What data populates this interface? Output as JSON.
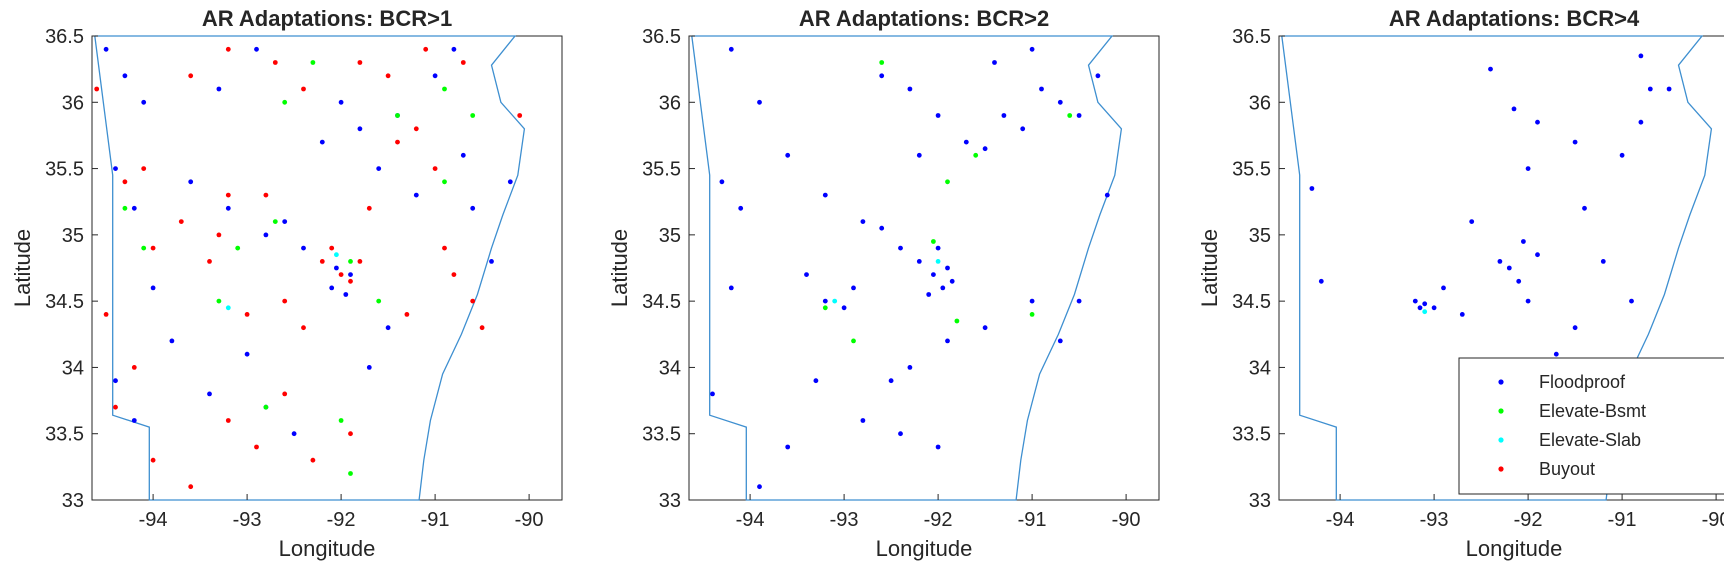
{
  "chart_data": [
    {
      "type": "scatter",
      "title": "AR Adaptations: BCR>1",
      "xlabel": "Longitude",
      "ylabel": "Latitude",
      "xlim": [
        -94.65,
        -89.65
      ],
      "ylim": [
        33,
        36.5
      ],
      "xticks": [
        "-94",
        "-93",
        "-92",
        "-91",
        "-90"
      ],
      "yticks": [
        "33",
        "33.5",
        "34",
        "34.5",
        "35",
        "35.5",
        "36",
        "36.5"
      ],
      "series": [
        {
          "name": "Floodproof",
          "color": "#0000ff",
          "points": [
            [
              -94.5,
              36.4
            ],
            [
              -94.3,
              36.2
            ],
            [
              -94.4,
              35.5
            ],
            [
              -94.2,
              35.2
            ],
            [
              -94.0,
              34.6
            ],
            [
              -93.6,
              35.4
            ],
            [
              -93.2,
              35.2
            ],
            [
              -92.8,
              35.0
            ],
            [
              -92.6,
              35.1
            ],
            [
              -92.4,
              34.9
            ],
            [
              -92.2,
              35.7
            ],
            [
              -92.0,
              36.0
            ],
            [
              -91.8,
              35.8
            ],
            [
              -91.6,
              35.5
            ],
            [
              -91.4,
              35.9
            ],
            [
              -91.2,
              35.3
            ],
            [
              -91.0,
              36.2
            ],
            [
              -90.8,
              36.4
            ],
            [
              -90.6,
              35.2
            ],
            [
              -90.4,
              34.8
            ],
            [
              -92.1,
              34.6
            ],
            [
              -91.95,
              34.55
            ],
            [
              -92.05,
              34.75
            ],
            [
              -91.9,
              34.7
            ],
            [
              -93.0,
              34.1
            ],
            [
              -93.4,
              33.8
            ],
            [
              -94.2,
              33.6
            ],
            [
              -94.4,
              33.9
            ],
            [
              -92.8,
              33.7
            ],
            [
              -91.5,
              34.3
            ],
            [
              -90.7,
              35.6
            ],
            [
              -90.2,
              35.4
            ],
            [
              -93.3,
              36.1
            ],
            [
              -92.9,
              36.4
            ],
            [
              -94.1,
              36.0
            ],
            [
              -93.8,
              34.2
            ],
            [
              -92.5,
              33.5
            ],
            [
              -91.7,
              34.0
            ]
          ]
        },
        {
          "name": "Elevate-Bsmt",
          "color": "#00ff00",
          "points": [
            [
              -94.3,
              35.2
            ],
            [
              -94.1,
              34.9
            ],
            [
              -93.1,
              34.9
            ],
            [
              -92.7,
              35.1
            ],
            [
              -91.9,
              34.8
            ],
            [
              -91.4,
              35.9
            ],
            [
              -90.9,
              36.1
            ],
            [
              -90.6,
              35.9
            ],
            [
              -92.3,
              36.3
            ],
            [
              -92.6,
              36.0
            ],
            [
              -93.3,
              34.5
            ],
            [
              -92.0,
              33.6
            ],
            [
              -92.8,
              33.7
            ],
            [
              -91.9,
              33.2
            ],
            [
              -90.9,
              35.4
            ],
            [
              -91.6,
              34.5
            ]
          ]
        },
        {
          "name": "Elevate-Slab",
          "color": "#00ffff",
          "points": [
            [
              -92.05,
              34.85
            ],
            [
              -93.2,
              34.45
            ]
          ]
        },
        {
          "name": "Buyout",
          "color": "#ff0000",
          "points": [
            [
              -94.6,
              36.1
            ],
            [
              -94.3,
              35.4
            ],
            [
              -94.0,
              34.9
            ],
            [
              -94.5,
              34.4
            ],
            [
              -94.2,
              34.0
            ],
            [
              -94.4,
              33.7
            ],
            [
              -94.0,
              33.3
            ],
            [
              -93.6,
              33.1
            ],
            [
              -93.2,
              33.6
            ],
            [
              -93.0,
              34.4
            ],
            [
              -92.6,
              34.5
            ],
            [
              -92.4,
              34.3
            ],
            [
              -92.2,
              34.8
            ],
            [
              -92.0,
              34.7
            ],
            [
              -91.9,
              34.65
            ],
            [
              -91.8,
              34.8
            ],
            [
              -92.1,
              34.9
            ],
            [
              -91.7,
              35.2
            ],
            [
              -91.4,
              35.7
            ],
            [
              -91.2,
              35.8
            ],
            [
              -91.0,
              35.5
            ],
            [
              -90.8,
              34.7
            ],
            [
              -90.6,
              34.5
            ],
            [
              -90.5,
              34.3
            ],
            [
              -90.9,
              34.9
            ],
            [
              -91.3,
              34.4
            ],
            [
              -92.8,
              35.3
            ],
            [
              -93.2,
              35.3
            ],
            [
              -93.6,
              36.2
            ],
            [
              -93.2,
              36.4
            ],
            [
              -92.7,
              36.3
            ],
            [
              -92.4,
              36.1
            ],
            [
              -91.8,
              36.3
            ],
            [
              -91.5,
              36.2
            ],
            [
              -91.1,
              36.4
            ],
            [
              -90.7,
              36.3
            ],
            [
              -90.1,
              35.9
            ],
            [
              -92.9,
              33.4
            ],
            [
              -92.3,
              33.3
            ],
            [
              -91.9,
              33.5
            ],
            [
              -92.6,
              33.8
            ],
            [
              -93.4,
              34.8
            ],
            [
              -93.7,
              35.1
            ],
            [
              -94.1,
              35.5
            ],
            [
              -93.3,
              35.0
            ]
          ]
        }
      ]
    },
    {
      "type": "scatter",
      "title": "AR Adaptations: BCR>2",
      "xlabel": "Longitude",
      "ylabel": "Latitude",
      "xlim": [
        -94.65,
        -89.65
      ],
      "ylim": [
        33,
        36.5
      ],
      "xticks": [
        "-94",
        "-93",
        "-92",
        "-91",
        "-90"
      ],
      "yticks": [
        "33",
        "33.5",
        "34",
        "34.5",
        "35",
        "35.5",
        "36",
        "36.5"
      ],
      "series": [
        {
          "name": "Floodproof",
          "color": "#0000ff",
          "points": [
            [
              -94.2,
              36.4
            ],
            [
              -93.9,
              36.0
            ],
            [
              -93.6,
              35.6
            ],
            [
              -94.3,
              35.4
            ],
            [
              -94.1,
              35.2
            ],
            [
              -93.2,
              35.3
            ],
            [
              -92.8,
              35.1
            ],
            [
              -92.6,
              35.05
            ],
            [
              -92.4,
              34.9
            ],
            [
              -92.2,
              34.8
            ],
            [
              -92.05,
              34.7
            ],
            [
              -91.95,
              34.6
            ],
            [
              -91.9,
              34.75
            ],
            [
              -92.1,
              34.55
            ],
            [
              -91.85,
              34.65
            ],
            [
              -92.0,
              34.9
            ],
            [
              -92.2,
              35.6
            ],
            [
              -92.0,
              35.9
            ],
            [
              -91.7,
              35.7
            ],
            [
              -91.5,
              35.65
            ],
            [
              -91.3,
              35.9
            ],
            [
              -91.1,
              35.8
            ],
            [
              -90.9,
              36.1
            ],
            [
              -90.7,
              36.0
            ],
            [
              -90.5,
              35.9
            ],
            [
              -90.3,
              36.2
            ],
            [
              -92.6,
              36.2
            ],
            [
              -92.3,
              36.1
            ],
            [
              -91.4,
              36.3
            ],
            [
              -91.0,
              36.4
            ],
            [
              -93.2,
              34.5
            ],
            [
              -93.0,
              34.45
            ],
            [
              -92.9,
              34.6
            ],
            [
              -93.3,
              33.9
            ],
            [
              -93.6,
              33.4
            ],
            [
              -93.9,
              33.1
            ],
            [
              -92.8,
              33.6
            ],
            [
              -92.4,
              33.5
            ],
            [
              -92.0,
              33.4
            ],
            [
              -91.5,
              34.3
            ],
            [
              -91.0,
              34.5
            ],
            [
              -90.7,
              34.2
            ],
            [
              -90.5,
              34.5
            ],
            [
              -90.2,
              35.3
            ],
            [
              -91.9,
              34.2
            ],
            [
              -92.3,
              34.0
            ],
            [
              -92.5,
              33.9
            ],
            [
              -94.2,
              34.6
            ],
            [
              -94.4,
              33.8
            ],
            [
              -93.4,
              34.7
            ]
          ]
        },
        {
          "name": "Elevate-Bsmt",
          "color": "#00ff00",
          "points": [
            [
              -92.6,
              36.3
            ],
            [
              -91.6,
              35.6
            ],
            [
              -91.9,
              35.4
            ],
            [
              -91.0,
              34.4
            ],
            [
              -92.9,
              34.2
            ],
            [
              -92.05,
              34.95
            ],
            [
              -91.8,
              34.35
            ],
            [
              -93.2,
              34.45
            ],
            [
              -90.6,
              35.9
            ]
          ]
        },
        {
          "name": "Elevate-Slab",
          "color": "#00ffff",
          "points": [
            [
              -92.0,
              34.8
            ],
            [
              -93.1,
              34.5
            ]
          ]
        },
        {
          "name": "Buyout",
          "color": "#ff0000",
          "points": []
        }
      ]
    },
    {
      "type": "scatter",
      "title": "AR Adaptations: BCR>4",
      "xlabel": "Longitude",
      "ylabel": "Latitude",
      "xlim": [
        -94.65,
        -89.65
      ],
      "ylim": [
        33,
        36.5
      ],
      "xticks": [
        "-94",
        "-93",
        "-92",
        "-91",
        "-90"
      ],
      "yticks": [
        "33",
        "33.5",
        "34",
        "34.5",
        "35",
        "35.5",
        "36",
        "36.5"
      ],
      "legend": {
        "entries": [
          "Floodproof",
          "Elevate-Bsmt",
          "Elevate-Slab",
          "Buyout"
        ],
        "placement": "bottom-right"
      },
      "series": [
        {
          "name": "Floodproof",
          "color": "#0000ff",
          "points": [
            [
              -94.3,
              35.35
            ],
            [
              -94.2,
              34.65
            ],
            [
              -93.2,
              34.5
            ],
            [
              -93.15,
              34.45
            ],
            [
              -93.1,
              34.48
            ],
            [
              -93.0,
              34.45
            ],
            [
              -92.9,
              34.6
            ],
            [
              -92.7,
              34.4
            ],
            [
              -92.6,
              35.1
            ],
            [
              -92.3,
              34.8
            ],
            [
              -92.2,
              34.75
            ],
            [
              -92.1,
              34.65
            ],
            [
              -92.0,
              34.5
            ],
            [
              -91.9,
              34.85
            ],
            [
              -92.05,
              34.95
            ],
            [
              -92.15,
              35.95
            ],
            [
              -91.9,
              35.85
            ],
            [
              -92.4,
              36.25
            ],
            [
              -91.5,
              35.7
            ],
            [
              -91.4,
              35.2
            ],
            [
              -91.0,
              35.6
            ],
            [
              -90.8,
              35.85
            ],
            [
              -90.7,
              36.1
            ],
            [
              -90.5,
              36.1
            ],
            [
              -90.8,
              36.35
            ],
            [
              -91.5,
              34.3
            ],
            [
              -91.2,
              34.8
            ],
            [
              -90.9,
              34.5
            ],
            [
              -92.0,
              35.5
            ],
            [
              -91.7,
              34.1
            ]
          ]
        },
        {
          "name": "Elevate-Bsmt",
          "color": "#00ff00",
          "points": []
        },
        {
          "name": "Elevate-Slab",
          "color": "#00ffff",
          "points": [
            [
              -93.1,
              34.42
            ]
          ]
        },
        {
          "name": "Buyout",
          "color": "#ff0000",
          "points": []
        }
      ]
    }
  ]
}
